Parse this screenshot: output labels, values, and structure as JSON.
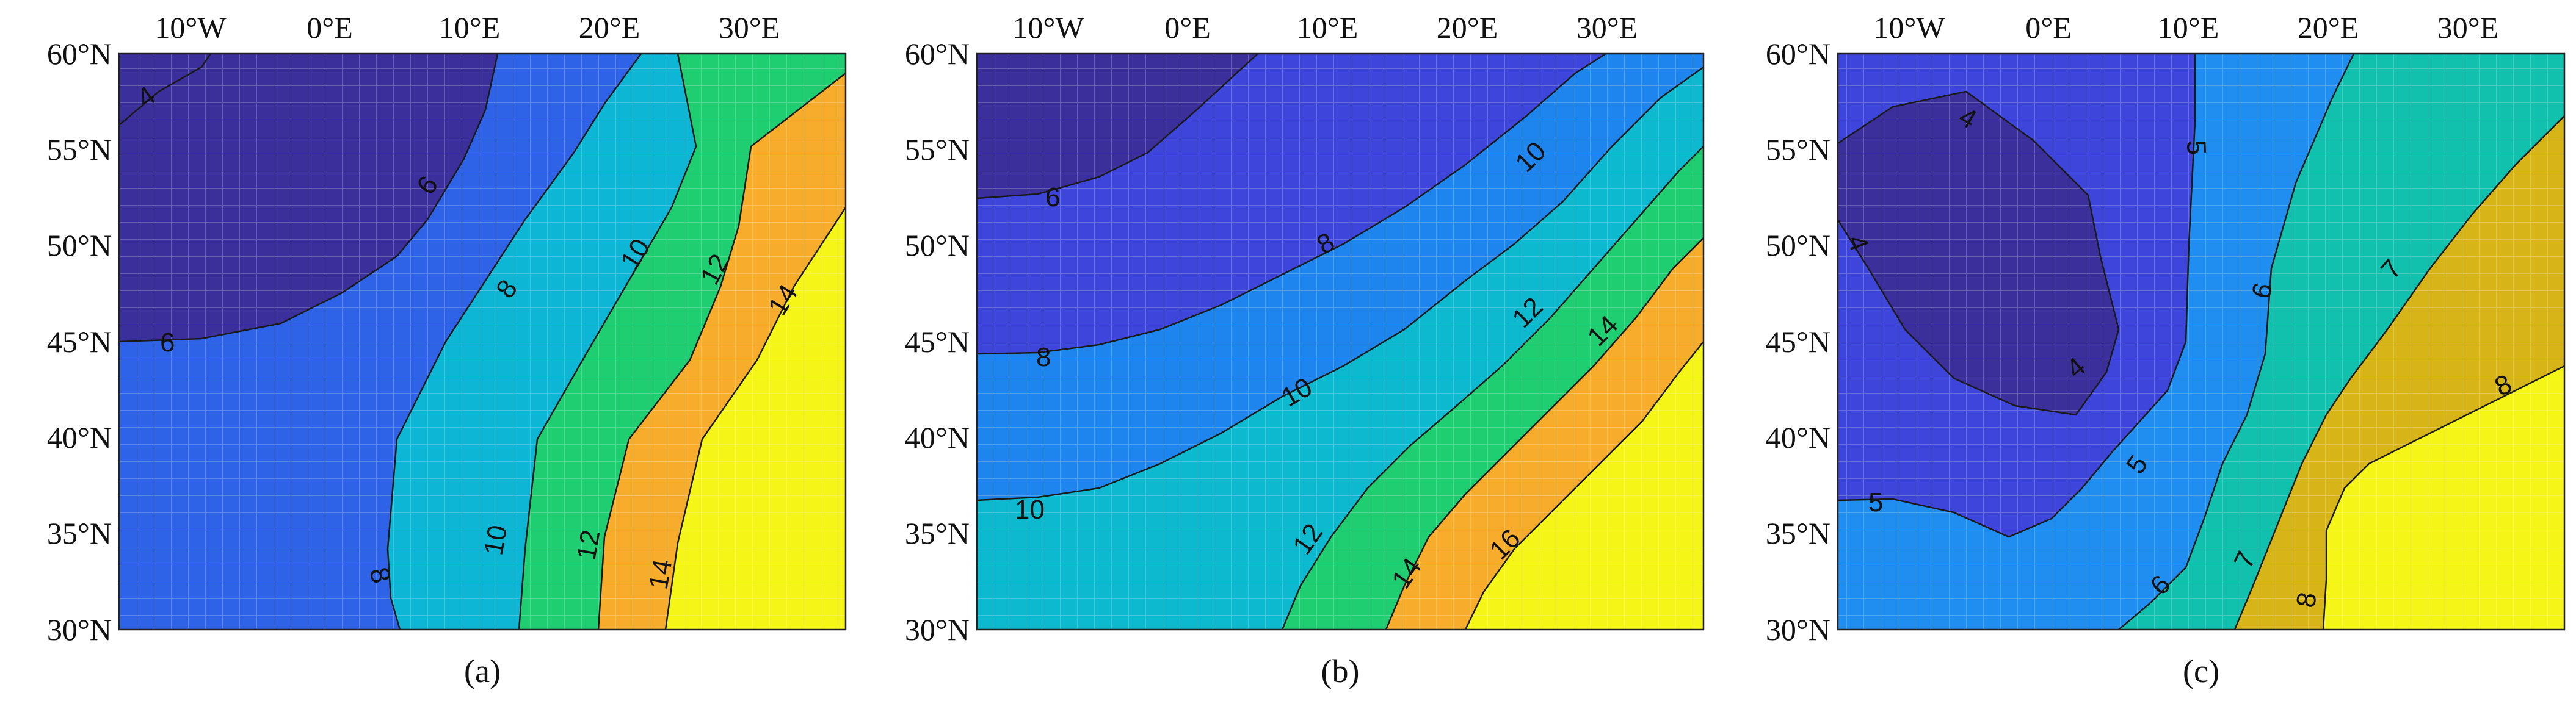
{
  "figure": {
    "x_tick_labels": [
      "10°W",
      "0°E",
      "10°E",
      "20°E",
      "30°E"
    ],
    "y_tick_labels": [
      "60°N",
      "55°N",
      "50°N",
      "45°N",
      "40°N",
      "35°N",
      "30°N"
    ],
    "lon_range": [
      -15,
      37
    ],
    "lat_range": [
      30,
      60
    ],
    "panels": [
      {
        "caption": "(a)",
        "bands": [
          {
            "color": "#3b2f9b",
            "range": "< 6"
          },
          {
            "color": "#2e63e8",
            "range": "6–8"
          },
          {
            "color": "#0db6d4",
            "range": "8–10"
          },
          {
            "color": "#1fce71",
            "range": "10–12"
          },
          {
            "color": "#f7ad2b",
            "range": "12–14"
          },
          {
            "color": "#f5f518",
            "range": "> 14"
          }
        ],
        "contour_labels": [
          "4",
          "6",
          "6",
          "8",
          "8",
          "10",
          "10",
          "12",
          "12",
          "14",
          "14"
        ]
      },
      {
        "caption": "(b)",
        "bands": [
          {
            "color": "#3b2f9b",
            "range": "< 6"
          },
          {
            "color": "#3d45da",
            "range": "6–8"
          },
          {
            "color": "#1f85ee",
            "range": "8–10"
          },
          {
            "color": "#0cb9cf",
            "range": "10–12"
          },
          {
            "color": "#1fce71",
            "range": "12–14"
          },
          {
            "color": "#f7ad2b",
            "range": "14–16"
          },
          {
            "color": "#f5f518",
            "range": "> 16"
          }
        ],
        "contour_labels": [
          "6",
          "8",
          "8",
          "10",
          "10",
          "10",
          "12",
          "12",
          "14",
          "14",
          "16"
        ]
      },
      {
        "caption": "(c)",
        "bands": [
          {
            "color": "#3b2f9b",
            "range": "< 4"
          },
          {
            "color": "#3d45da",
            "range": "4–5"
          },
          {
            "color": "#1f8ef0",
            "range": "5–6"
          },
          {
            "color": "#11c0ad",
            "range": "6–7"
          },
          {
            "color": "#d7b519",
            "range": "7–8"
          },
          {
            "color": "#f5f518",
            "range": "> 8"
          }
        ],
        "contour_labels": [
          "4",
          "4",
          "4",
          "5",
          "5",
          "5",
          "6",
          "6",
          "7",
          "7",
          "8",
          "8"
        ]
      }
    ]
  }
}
